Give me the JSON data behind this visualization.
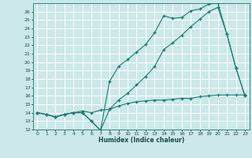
{
  "xlabel": "Humidex (Indice chaleur)",
  "bg_color": "#cce8e8",
  "grid_color": "#ffffff",
  "line_color": "#1a7a6e",
  "xlim": [
    -0.5,
    23.5
  ],
  "ylim": [
    12,
    27
  ],
  "yticks": [
    12,
    13,
    14,
    15,
    16,
    17,
    18,
    19,
    20,
    21,
    22,
    23,
    24,
    25,
    26
  ],
  "xticks": [
    0,
    1,
    2,
    3,
    4,
    5,
    6,
    7,
    8,
    9,
    10,
    11,
    12,
    13,
    14,
    15,
    16,
    17,
    18,
    19,
    20,
    21,
    22,
    23
  ],
  "line1_x": [
    0,
    1,
    2,
    3,
    4,
    5,
    6,
    7,
    8,
    9,
    10,
    11,
    12,
    13,
    14,
    15,
    16,
    17,
    18,
    19,
    20,
    21,
    22,
    23
  ],
  "line1_y": [
    14.0,
    13.8,
    13.5,
    13.8,
    14.0,
    14.0,
    13.0,
    11.9,
    17.7,
    19.5,
    20.3,
    21.2,
    22.1,
    23.5,
    25.5,
    25.2,
    25.3,
    26.1,
    26.3,
    26.9,
    27.0,
    23.3,
    19.3,
    16.0
  ],
  "line2_x": [
    0,
    1,
    2,
    3,
    4,
    5,
    6,
    7,
    8,
    9,
    10,
    11,
    12,
    13,
    14,
    15,
    16,
    17,
    18,
    19,
    20,
    21,
    22,
    23
  ],
  "line2_y": [
    14.0,
    13.8,
    13.5,
    13.8,
    14.0,
    14.0,
    13.0,
    11.9,
    14.4,
    15.5,
    16.3,
    17.3,
    18.3,
    19.5,
    21.5,
    22.3,
    23.2,
    24.2,
    25.1,
    26.0,
    26.5,
    23.3,
    19.3,
    16.0
  ],
  "line3_x": [
    0,
    1,
    2,
    3,
    4,
    5,
    6,
    7,
    8,
    9,
    10,
    11,
    12,
    13,
    14,
    15,
    16,
    17,
    18,
    19,
    20,
    21,
    22,
    23
  ],
  "line3_y": [
    14.0,
    13.8,
    13.5,
    13.8,
    14.0,
    14.2,
    14.0,
    14.3,
    14.4,
    14.8,
    15.1,
    15.3,
    15.4,
    15.5,
    15.5,
    15.6,
    15.7,
    15.7,
    15.9,
    16.0,
    16.1,
    16.1,
    16.1,
    16.1
  ]
}
